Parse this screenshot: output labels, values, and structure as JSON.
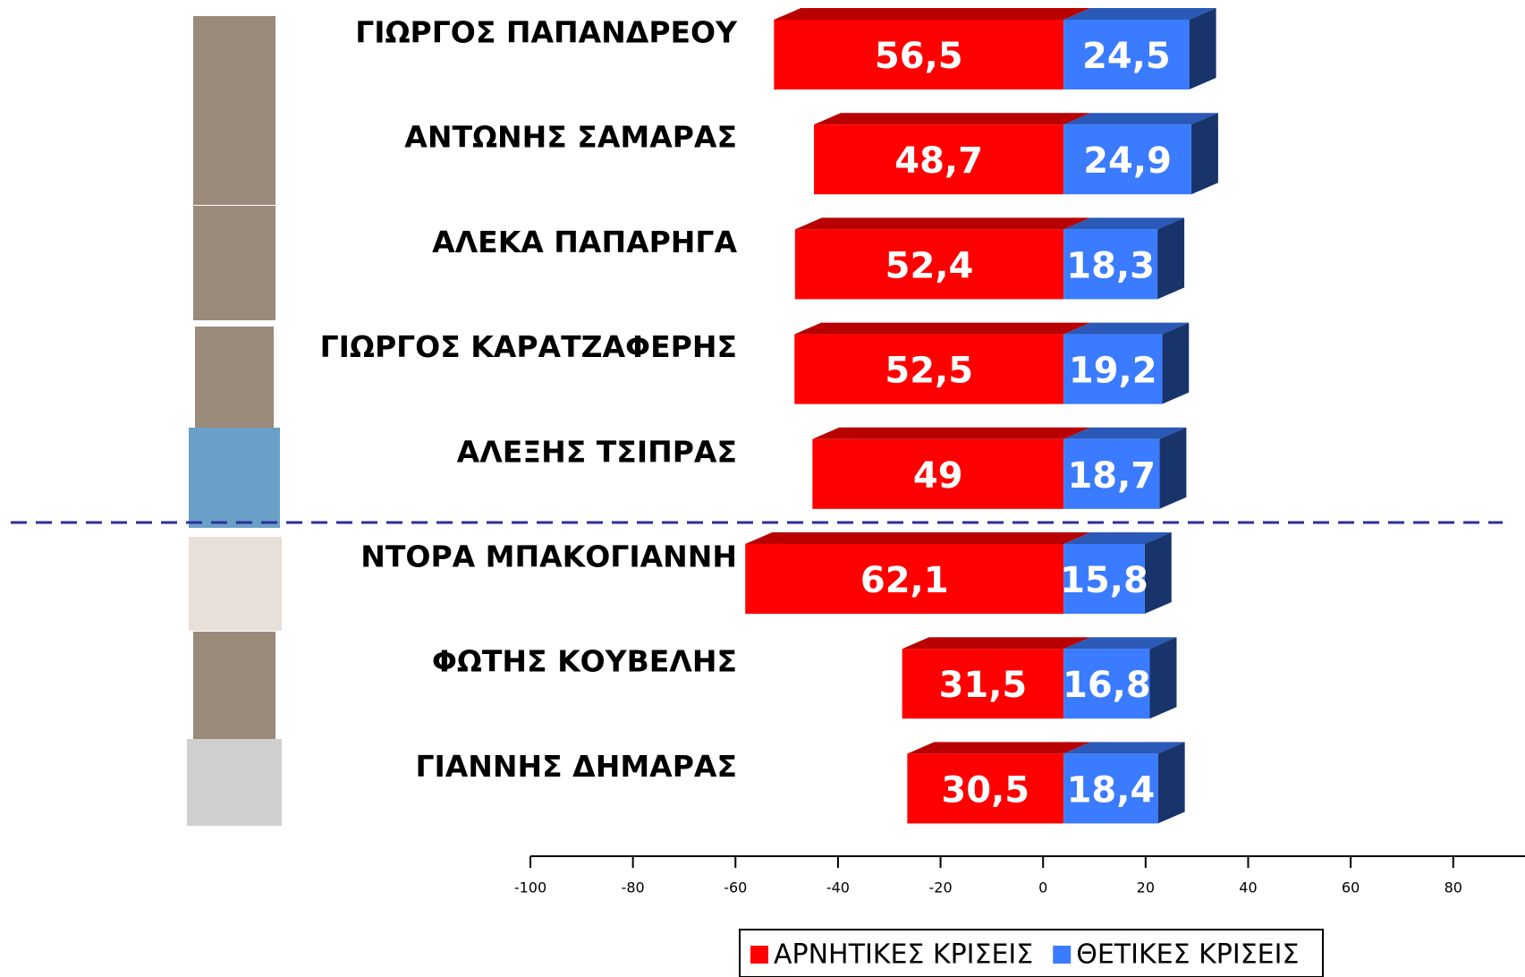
{
  "chart_data": {
    "type": "diverging-bar-3d",
    "categories": [
      "ΓΙΩΡΓΟΣ ΠΑΠΑΝΔΡΕΟΥ",
      "ΑΝΤΩΝΗΣ ΣΑΜΑΡΑΣ",
      "ΑΛΕΚΑ ΠΑΠΑΡΗΓΑ",
      "ΓΙΩΡΓΟΣ ΚΑΡΑΤΖΑΦΕΡΗΣ",
      "ΑΛΕΞΗΣ ΤΣΙΠΡΑΣ",
      "ΝΤΟΡΑ ΜΠΑΚΟΓΙΑΝΝΗ",
      "ΦΩΤΗΣ ΚΟΥΒΕΛΗΣ",
      "ΓΙΑΝΝΗΣ ΔΗΜΑΡΑΣ"
    ],
    "series": [
      {
        "name": "ΑΡΝΗΤΙΚΕΣ ΚΡΙΣΕΙΣ",
        "color": "#ff0000",
        "values": [
          -56.5,
          -48.7,
          -52.4,
          -52.5,
          -49,
          -62.1,
          -31.5,
          -30.5
        ],
        "value_labels": [
          "56,5",
          "48,7",
          "52,4",
          "52,5",
          "49",
          "62,1",
          "31,5",
          "30,5"
        ]
      },
      {
        "name": "ΘΕΤΙΚΕΣ ΚΡΙΣΕΙΣ",
        "color": "#3a7bff",
        "values": [
          24.5,
          24.9,
          18.3,
          19.2,
          18.7,
          15.8,
          16.8,
          18.4
        ],
        "value_labels": [
          "24,5",
          "24,9",
          "18,3",
          "19,2",
          "18,7",
          "15,8",
          "16,8",
          "18,4"
        ]
      }
    ],
    "xlim": [
      -100,
      94
    ],
    "xticks": [
      -100,
      -80,
      -60,
      -40,
      -20,
      0,
      20,
      40,
      60,
      80
    ],
    "legend": "bottom"
  }
}
